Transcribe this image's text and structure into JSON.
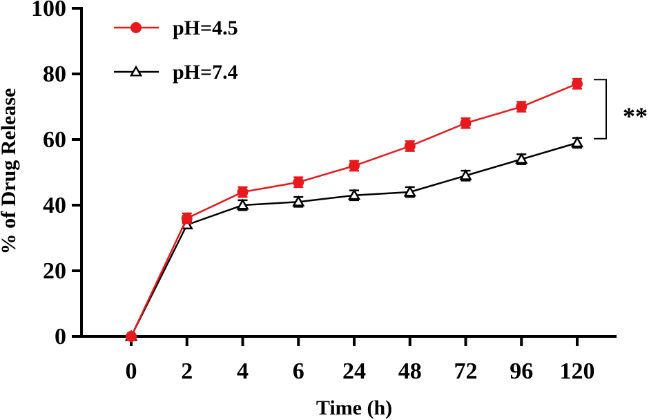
{
  "chart_data": {
    "type": "line",
    "title": "",
    "xlabel": "Time (h)",
    "ylabel": "% of Drug Release",
    "ylim": [
      0,
      100
    ],
    "yticks": [
      0,
      20,
      40,
      60,
      80,
      100
    ],
    "categories": [
      "0",
      "2",
      "4",
      "6",
      "24",
      "48",
      "72",
      "96",
      "120"
    ],
    "grid": false,
    "legend_position": "top-left",
    "series": [
      {
        "name": "pH=4.5",
        "color": "#e8191c",
        "marker": "circle",
        "values": [
          0,
          36,
          44,
          47,
          52,
          58,
          65,
          70,
          77
        ],
        "errors": [
          0,
          1.5,
          1.5,
          1.5,
          1.5,
          1.5,
          1.5,
          1.5,
          1.5
        ]
      },
      {
        "name": "pH=7.4",
        "color": "#000000",
        "marker": "triangle",
        "values": [
          0,
          34,
          40,
          41,
          43,
          44,
          49,
          54,
          59
        ],
        "errors": [
          0,
          1,
          1.5,
          1.5,
          1.5,
          1.5,
          1.5,
          1.5,
          1.5
        ]
      }
    ],
    "annotation": {
      "text": "**",
      "between_series": [
        "pH=4.5",
        "pH=7.4"
      ],
      "at_category": "120"
    }
  }
}
